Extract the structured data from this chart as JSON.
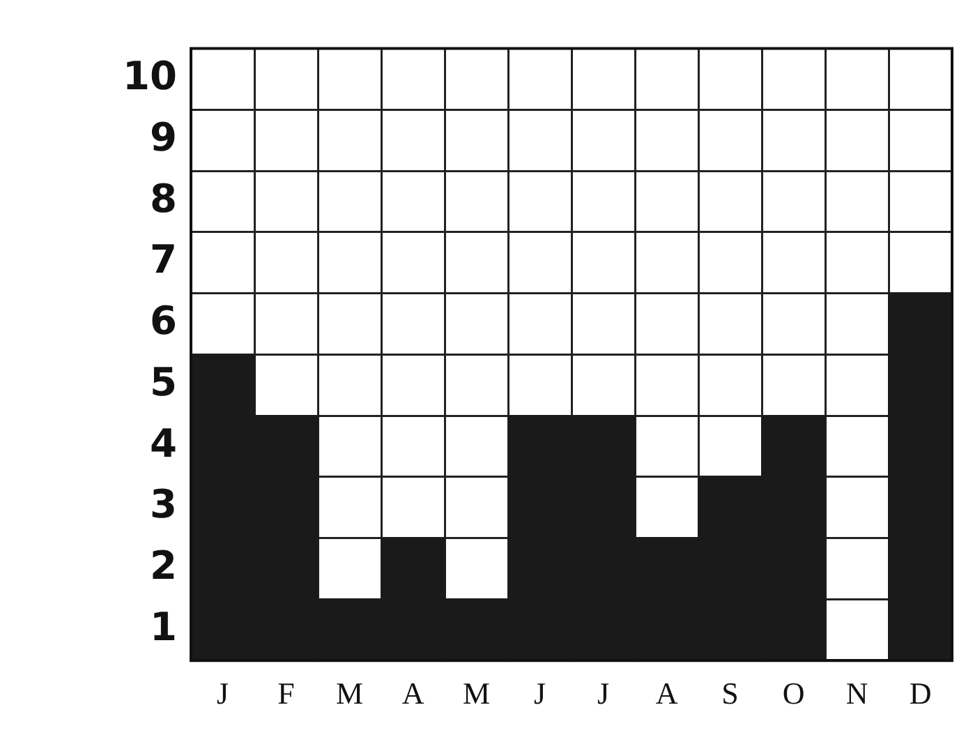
{
  "chart_data": {
    "type": "bar",
    "categories": [
      "J",
      "F",
      "M",
      "A",
      "M",
      "J",
      "J",
      "A",
      "S",
      "O",
      "N",
      "D"
    ],
    "values": [
      5,
      4,
      1,
      2,
      1,
      4,
      4,
      2,
      3,
      4,
      0,
      6
    ],
    "color": "#1a1a1a",
    "ylim": [
      0,
      10
    ],
    "yticks": [
      {
        "value": 0,
        "label": null
      },
      1,
      2,
      3,
      4,
      5,
      6,
      7,
      8,
      9,
      10
    ],
    "grid": true
  }
}
